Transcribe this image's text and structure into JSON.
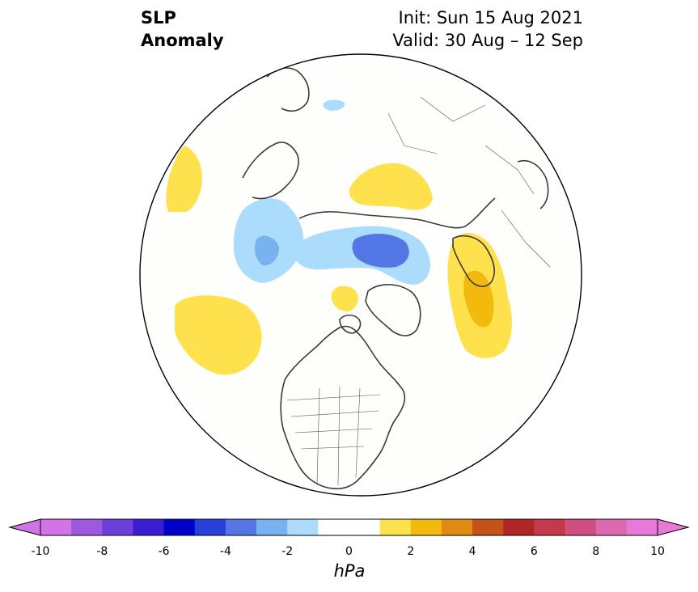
{
  "header": {
    "title_left_line1": "SLP",
    "title_left_line2": "Anomaly",
    "init_text": "Init: Sun 15 Aug 2021",
    "valid_text": "Valid: 30 Aug – 12 Sep"
  },
  "map": {
    "projection": "north-polar-stereographic",
    "anomaly_features": [
      {
        "name": "positive-anomaly-north-pacific",
        "level": 1
      },
      {
        "name": "positive-anomaly-alaska-small",
        "level": 1
      },
      {
        "name": "positive-anomaly-west-siberia",
        "level": 1
      },
      {
        "name": "positive-anomaly-eastern-canada",
        "level": 1
      },
      {
        "name": "positive-anomaly-eastern-canada-core",
        "level": 2
      },
      {
        "name": "positive-anomaly-hudson-bay",
        "level": 1
      },
      {
        "name": "negative-anomaly-europe",
        "level": -1
      },
      {
        "name": "negative-anomaly-europe-core",
        "level": -2
      },
      {
        "name": "negative-anomaly-arctic",
        "level": -1
      },
      {
        "name": "negative-anomaly-arctic-core",
        "level": -2
      },
      {
        "name": "negative-anomaly-pacific-small",
        "level": -1
      }
    ]
  },
  "colorbar": {
    "units": "hPa",
    "tick_labels": [
      "-10",
      "-8",
      "-6",
      "-4",
      "-2",
      "0",
      "2",
      "4",
      "6",
      "8",
      "10"
    ],
    "colors": [
      "#d274e6",
      "#9e59df",
      "#6b3fd9",
      "#3b1ccf",
      "#0000cd",
      "#2541d8",
      "#5277e5",
      "#7ab2f0",
      "#abdcfb",
      "#ffffff",
      "#ffffff",
      "#fee14c",
      "#f3b90d",
      "#df8b12",
      "#c45219",
      "#b02525",
      "#c33a4a",
      "#d04e80",
      "#dd68b2",
      "#e77ad8"
    ],
    "extend_low_color": "#d274e6",
    "extend_high_color": "#e77ad8"
  }
}
